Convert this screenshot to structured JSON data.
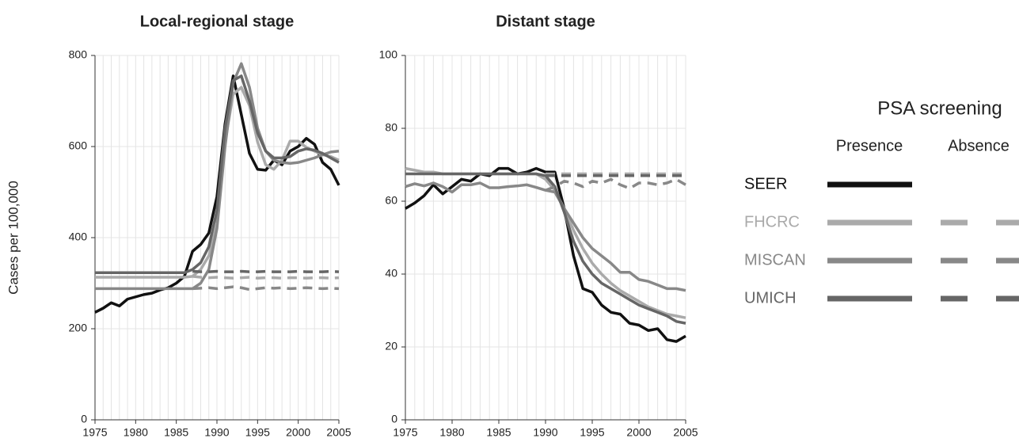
{
  "chart_data": [
    {
      "type": "line",
      "title": "Local-regional stage",
      "ylabel": "Cases per 100,000",
      "x": [
        1975,
        1976,
        1977,
        1978,
        1979,
        1980,
        1981,
        1982,
        1983,
        1984,
        1985,
        1986,
        1987,
        1988,
        1989,
        1990,
        1991,
        1992,
        1993,
        1994,
        1995,
        1996,
        1997,
        1998,
        1999,
        2000,
        2001,
        2002,
        2003,
        2004,
        2005
      ],
      "xlim": [
        1975,
        2005
      ],
      "xticks": [
        1975,
        1980,
        1985,
        1990,
        1995,
        2000,
        2005
      ],
      "ylim": [
        0,
        800
      ],
      "yticks": [
        0,
        200,
        400,
        600,
        800
      ],
      "grid": true,
      "series": [
        {
          "name": "SEER",
          "color": "#111111",
          "dashed": false,
          "values": [
            236,
            245,
            257,
            250,
            265,
            270,
            275,
            278,
            285,
            290,
            300,
            315,
            370,
            385,
            410,
            490,
            650,
            755,
            670,
            585,
            550,
            548,
            570,
            560,
            590,
            600,
            618,
            605,
            565,
            550,
            515
          ]
        },
        {
          "name": "FHCRC",
          "color": "#aaaaaa",
          "dashed": false,
          "values": [
            313,
            313,
            313,
            313,
            313,
            313,
            313,
            313,
            313,
            313,
            313,
            313,
            315,
            330,
            360,
            430,
            610,
            715,
            730,
            690,
            610,
            560,
            550,
            570,
            612,
            612,
            598,
            590,
            582,
            578,
            570
          ]
        },
        {
          "name": "MISCAN",
          "color": "#888888",
          "dashed": false,
          "values": [
            288,
            288,
            288,
            288,
            288,
            288,
            288,
            288,
            288,
            288,
            288,
            288,
            288,
            300,
            330,
            420,
            600,
            740,
            782,
            730,
            640,
            590,
            570,
            565,
            563,
            565,
            570,
            575,
            582,
            588,
            590
          ]
        },
        {
          "name": "UMICH",
          "color": "#666666",
          "dashed": false,
          "values": [
            323,
            323,
            323,
            323,
            323,
            323,
            323,
            323,
            323,
            323,
            323,
            323,
            330,
            345,
            380,
            460,
            640,
            745,
            755,
            700,
            630,
            590,
            575,
            575,
            578,
            590,
            595,
            592,
            585,
            575,
            565
          ]
        },
        {
          "name": "FHCRC",
          "color": "#aaaaaa",
          "dashed": true,
          "values": [
            null,
            null,
            null,
            null,
            null,
            null,
            null,
            null,
            null,
            null,
            null,
            null,
            315,
            313,
            312,
            313,
            312,
            311,
            312,
            313,
            311,
            312,
            312,
            311,
            312,
            312,
            311,
            312,
            312,
            311,
            312
          ]
        },
        {
          "name": "MISCAN",
          "color": "#888888",
          "dashed": true,
          "values": [
            null,
            null,
            null,
            null,
            null,
            null,
            null,
            null,
            null,
            null,
            null,
            null,
            288,
            289,
            290,
            288,
            290,
            292,
            290,
            286,
            288,
            290,
            289,
            290,
            288,
            289,
            290,
            289,
            288,
            289,
            288
          ]
        },
        {
          "name": "UMICH",
          "color": "#666666",
          "dashed": true,
          "values": [
            null,
            null,
            null,
            null,
            null,
            null,
            null,
            null,
            null,
            null,
            null,
            null,
            326,
            325,
            325,
            326,
            325,
            325,
            326,
            325,
            325,
            326,
            325,
            325,
            325,
            326,
            325,
            325,
            325,
            326,
            325
          ]
        }
      ]
    },
    {
      "type": "line",
      "title": "Distant stage",
      "x": [
        1975,
        1976,
        1977,
        1978,
        1979,
        1980,
        1981,
        1982,
        1983,
        1984,
        1985,
        1986,
        1987,
        1988,
        1989,
        1990,
        1991,
        1992,
        1993,
        1994,
        1995,
        1996,
        1997,
        1998,
        1999,
        2000,
        2001,
        2002,
        2003,
        2004,
        2005
      ],
      "xlim": [
        1975,
        2005
      ],
      "xticks": [
        1975,
        1980,
        1985,
        1990,
        1995,
        2000,
        2005
      ],
      "ylim": [
        0,
        100
      ],
      "yticks": [
        0,
        20,
        40,
        60,
        80,
        100
      ],
      "grid": true,
      "series": [
        {
          "name": "SEER",
          "color": "#111111",
          "dashed": false,
          "values": [
            58,
            59.5,
            61.5,
            64.5,
            62,
            64,
            66,
            65.5,
            67.5,
            67,
            69,
            69,
            67.5,
            68,
            69,
            68,
            68,
            58,
            45,
            36,
            35,
            31.5,
            29.5,
            29,
            26.5,
            26,
            24.5,
            25,
            22,
            21.5,
            23
          ]
        },
        {
          "name": "FHCRC",
          "color": "#aaaaaa",
          "dashed": false,
          "values": [
            69,
            68.5,
            68,
            68,
            67.5,
            67.5,
            67.5,
            67.5,
            67.5,
            67.5,
            67.5,
            67.5,
            67.5,
            67.5,
            67.5,
            66,
            63,
            58,
            52,
            47,
            43,
            40,
            37.5,
            35.5,
            34,
            32.5,
            31,
            30,
            29,
            28.5,
            28
          ]
        },
        {
          "name": "MISCAN",
          "color": "#888888",
          "dashed": false,
          "values": [
            64,
            64.8,
            64.2,
            65,
            64,
            62.5,
            64.5,
            64.5,
            65,
            63.7,
            63.7,
            64,
            64.2,
            64.5,
            63.8,
            63,
            62.5,
            58,
            54,
            50,
            47,
            45,
            43,
            40.5,
            40.5,
            38.5,
            38,
            37,
            36,
            36,
            35.5
          ]
        },
        {
          "name": "UMICH",
          "color": "#666666",
          "dashed": false,
          "values": [
            67.5,
            67.5,
            67.5,
            67.5,
            67.5,
            67.5,
            67.5,
            67.5,
            67.5,
            67.5,
            67.5,
            67.5,
            67.5,
            67.5,
            67.5,
            67,
            64,
            57,
            49,
            43.5,
            40,
            37.5,
            36,
            34.5,
            33,
            31.5,
            30.5,
            29.5,
            28.5,
            27,
            26.5
          ]
        },
        {
          "name": "FHCRC",
          "color": "#aaaaaa",
          "dashed": true,
          "values": [
            null,
            null,
            null,
            null,
            null,
            null,
            null,
            null,
            null,
            null,
            null,
            null,
            null,
            null,
            null,
            67.5,
            67.5,
            67.5,
            67.5,
            67.5,
            67.5,
            67.5,
            67.5,
            67.5,
            67.5,
            67.5,
            67.5,
            67.5,
            67.5,
            67.5,
            67.5
          ]
        },
        {
          "name": "MISCAN",
          "color": "#888888",
          "dashed": true,
          "values": [
            null,
            null,
            null,
            null,
            null,
            null,
            null,
            null,
            null,
            null,
            null,
            null,
            null,
            null,
            null,
            63,
            64,
            65.5,
            65,
            64,
            65.5,
            65,
            66,
            64.5,
            63.5,
            65,
            65,
            64.5,
            65,
            66,
            64.5
          ]
        },
        {
          "name": "UMICH",
          "color": "#666666",
          "dashed": true,
          "values": [
            null,
            null,
            null,
            null,
            null,
            null,
            null,
            null,
            null,
            null,
            null,
            null,
            null,
            null,
            null,
            67,
            67,
            67,
            67,
            67,
            67,
            67,
            67,
            67,
            67,
            67,
            67,
            67,
            67,
            67,
            67
          ]
        }
      ]
    }
  ],
  "legend": {
    "title": "PSA screening",
    "columns": [
      "Presence",
      "Absence"
    ]
  }
}
